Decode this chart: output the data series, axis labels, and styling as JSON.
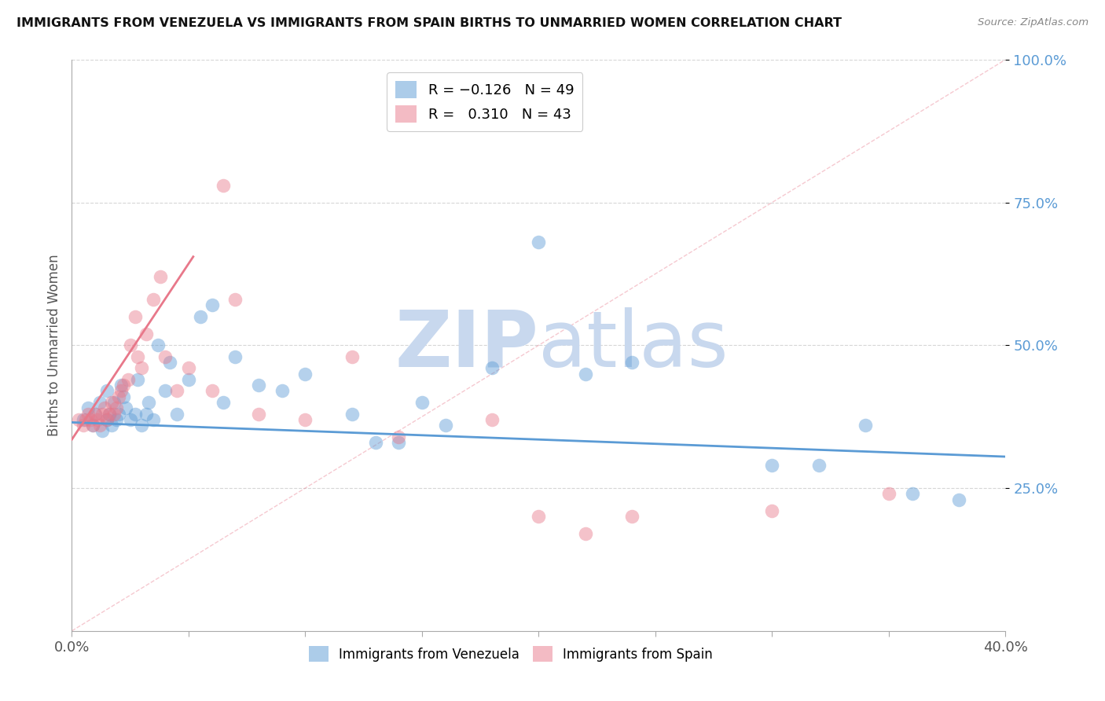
{
  "title": "IMMIGRANTS FROM VENEZUELA VS IMMIGRANTS FROM SPAIN BIRTHS TO UNMARRIED WOMEN CORRELATION CHART",
  "source": "Source: ZipAtlas.com",
  "ylabel": "Births to Unmarried Women",
  "xlim": [
    0.0,
    0.4
  ],
  "ylim": [
    0.0,
    1.0
  ],
  "xtick_labels": [
    "0.0%",
    "",
    "",
    "",
    "",
    "",
    "",
    "",
    "40.0%"
  ],
  "xtick_vals": [
    0.0,
    0.05,
    0.1,
    0.15,
    0.2,
    0.25,
    0.3,
    0.35,
    0.4
  ],
  "ytick_labels_right": [
    "100.0%",
    "75.0%",
    "50.0%",
    "25.0%"
  ],
  "ytick_vals_right": [
    1.0,
    0.75,
    0.5,
    0.25
  ],
  "legend_entries": [
    {
      "label": "R = -0.126  N = 49",
      "color": "#5b9bd5"
    },
    {
      "label": "R =  0.310  N = 43",
      "color": "#e06070"
    }
  ],
  "watermark_zip": "ZIP",
  "watermark_atlas": "atlas",
  "watermark_color": "#c8d8ee",
  "blue_color": "#5b9bd5",
  "pink_color": "#e8788a",
  "blue_trend_x": [
    0.0,
    0.4
  ],
  "blue_trend_y": [
    0.365,
    0.305
  ],
  "pink_trend_x": [
    0.0,
    0.052
  ],
  "pink_trend_y": [
    0.335,
    0.655
  ],
  "ref_line_x": [
    0.0,
    0.4
  ],
  "ref_line_y": [
    0.0,
    1.0
  ],
  "blue_scatter_x": [
    0.005,
    0.007,
    0.009,
    0.01,
    0.012,
    0.013,
    0.015,
    0.015,
    0.016,
    0.017,
    0.018,
    0.019,
    0.02,
    0.021,
    0.022,
    0.023,
    0.025,
    0.027,
    0.028,
    0.03,
    0.032,
    0.033,
    0.035,
    0.037,
    0.04,
    0.042,
    0.045,
    0.05,
    0.055,
    0.06,
    0.065,
    0.07,
    0.08,
    0.09,
    0.1,
    0.12,
    0.13,
    0.14,
    0.15,
    0.16,
    0.18,
    0.2,
    0.22,
    0.24,
    0.3,
    0.32,
    0.34,
    0.36,
    0.38
  ],
  "blue_scatter_y": [
    0.37,
    0.39,
    0.36,
    0.38,
    0.4,
    0.35,
    0.37,
    0.42,
    0.38,
    0.36,
    0.4,
    0.37,
    0.38,
    0.43,
    0.41,
    0.39,
    0.37,
    0.38,
    0.44,
    0.36,
    0.38,
    0.4,
    0.37,
    0.5,
    0.42,
    0.47,
    0.38,
    0.44,
    0.55,
    0.57,
    0.4,
    0.48,
    0.43,
    0.42,
    0.45,
    0.38,
    0.33,
    0.33,
    0.4,
    0.36,
    0.46,
    0.68,
    0.45,
    0.47,
    0.29,
    0.29,
    0.36,
    0.24,
    0.23
  ],
  "pink_scatter_x": [
    0.003,
    0.005,
    0.006,
    0.007,
    0.008,
    0.009,
    0.01,
    0.011,
    0.012,
    0.013,
    0.014,
    0.015,
    0.016,
    0.017,
    0.018,
    0.019,
    0.02,
    0.021,
    0.022,
    0.024,
    0.025,
    0.027,
    0.028,
    0.03,
    0.032,
    0.035,
    0.038,
    0.04,
    0.045,
    0.05,
    0.06,
    0.065,
    0.07,
    0.08,
    0.1,
    0.12,
    0.14,
    0.18,
    0.2,
    0.22,
    0.24,
    0.3,
    0.35
  ],
  "pink_scatter_y": [
    0.37,
    0.36,
    0.37,
    0.38,
    0.37,
    0.36,
    0.38,
    0.37,
    0.36,
    0.38,
    0.39,
    0.37,
    0.38,
    0.4,
    0.38,
    0.39,
    0.41,
    0.42,
    0.43,
    0.44,
    0.5,
    0.55,
    0.48,
    0.46,
    0.52,
    0.58,
    0.62,
    0.48,
    0.42,
    0.46,
    0.42,
    0.78,
    0.58,
    0.38,
    0.37,
    0.48,
    0.34,
    0.37,
    0.2,
    0.17,
    0.2,
    0.21,
    0.24
  ],
  "background_color": "#ffffff",
  "grid_color": "#cccccc"
}
